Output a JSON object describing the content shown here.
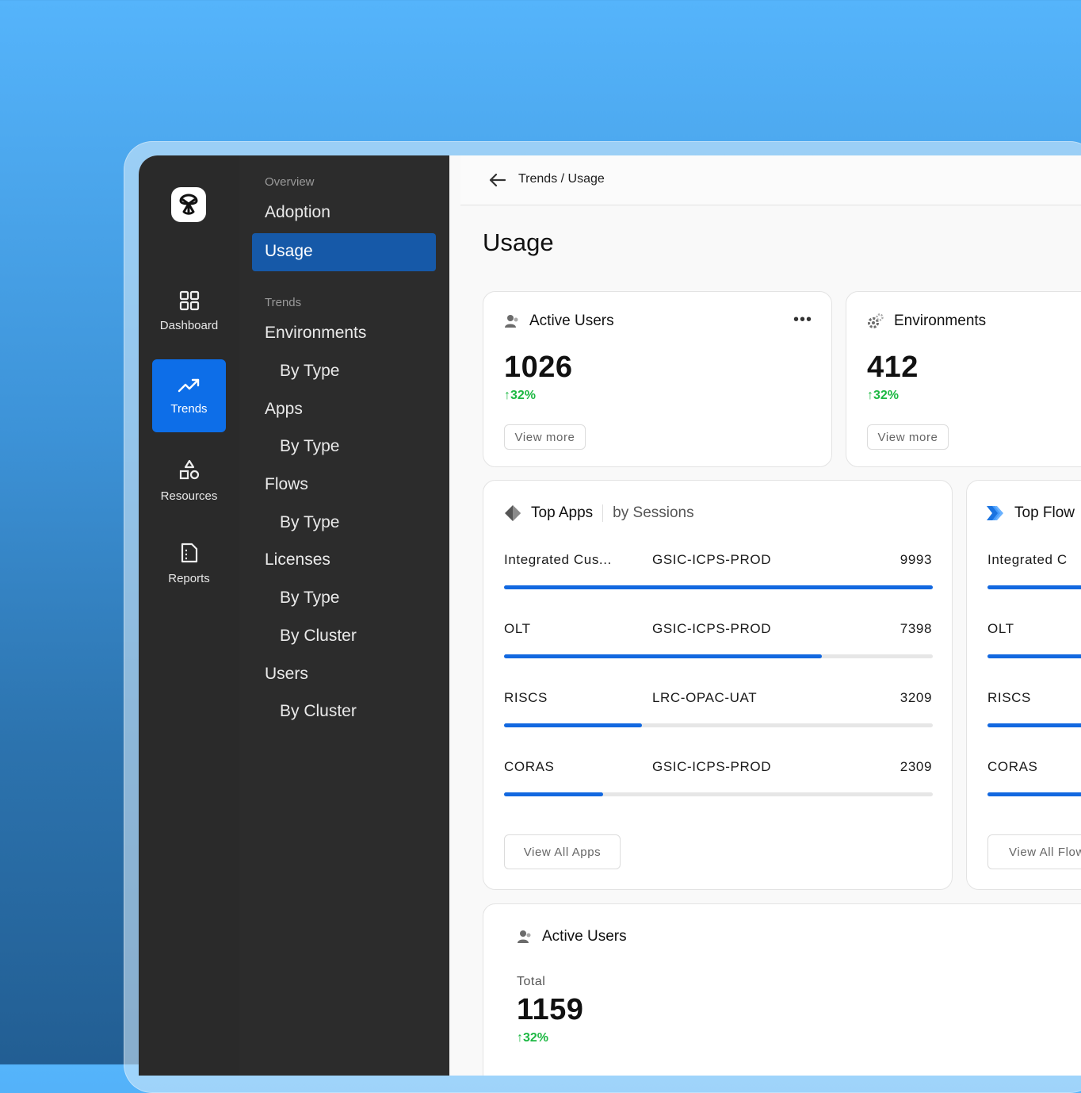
{
  "rail": {
    "items": [
      {
        "label": "Dashboard",
        "icon": "grid-icon"
      },
      {
        "label": "Trends",
        "icon": "trend-up-icon"
      },
      {
        "label": "Resources",
        "icon": "shapes-icon"
      },
      {
        "label": "Reports",
        "icon": "document-icon"
      }
    ]
  },
  "nav": {
    "overview_label": "Overview",
    "adoption": "Adoption",
    "usage": "Usage",
    "trends_label": "Trends",
    "environments": "Environments",
    "environments_by_type": "By Type",
    "apps": "Apps",
    "apps_by_type": "By Type",
    "flows": "Flows",
    "flows_by_type": "By Type",
    "licenses": "Licenses",
    "licenses_by_type": "By Type",
    "licenses_by_cluster": "By Cluster",
    "users": "Users",
    "users_by_cluster": "By Cluster"
  },
  "header": {
    "breadcrumb": "Trends / Usage",
    "title": "Usage"
  },
  "active_users_card": {
    "title": "Active Users",
    "value": "1026",
    "delta": "32%",
    "button": "View more"
  },
  "environments_card": {
    "title": "Environments",
    "value": "412",
    "delta": "32%",
    "button": "View more"
  },
  "top_apps": {
    "title": "Top Apps",
    "subtitle": "by Sessions",
    "max": 9993,
    "rows": [
      {
        "name": "Integrated  Cus...",
        "env": "GSIC-ICPS-PROD",
        "value": 9993
      },
      {
        "name": "OLT",
        "env": "GSIC-ICPS-PROD",
        "value": 7398
      },
      {
        "name": "RISCS",
        "env": "LRC-OPAC-UAT",
        "value": 3209
      },
      {
        "name": "CORAS",
        "env": "GSIC-ICPS-PROD",
        "value": 2309
      }
    ],
    "button": "View All Apps"
  },
  "top_flows": {
    "title": "Top Flow",
    "rows": [
      "Integrated  C",
      "OLT",
      "RISCS",
      "CORAS"
    ],
    "button": "View All Flow"
  },
  "active_users_total": {
    "title": "Active Users",
    "label": "Total",
    "value": "1159",
    "delta": "32%"
  },
  "colors": {
    "accent": "#0d6ee8",
    "bar": "#1268e0",
    "positive": "#1db843",
    "sidebar": "#2c2c2c"
  }
}
